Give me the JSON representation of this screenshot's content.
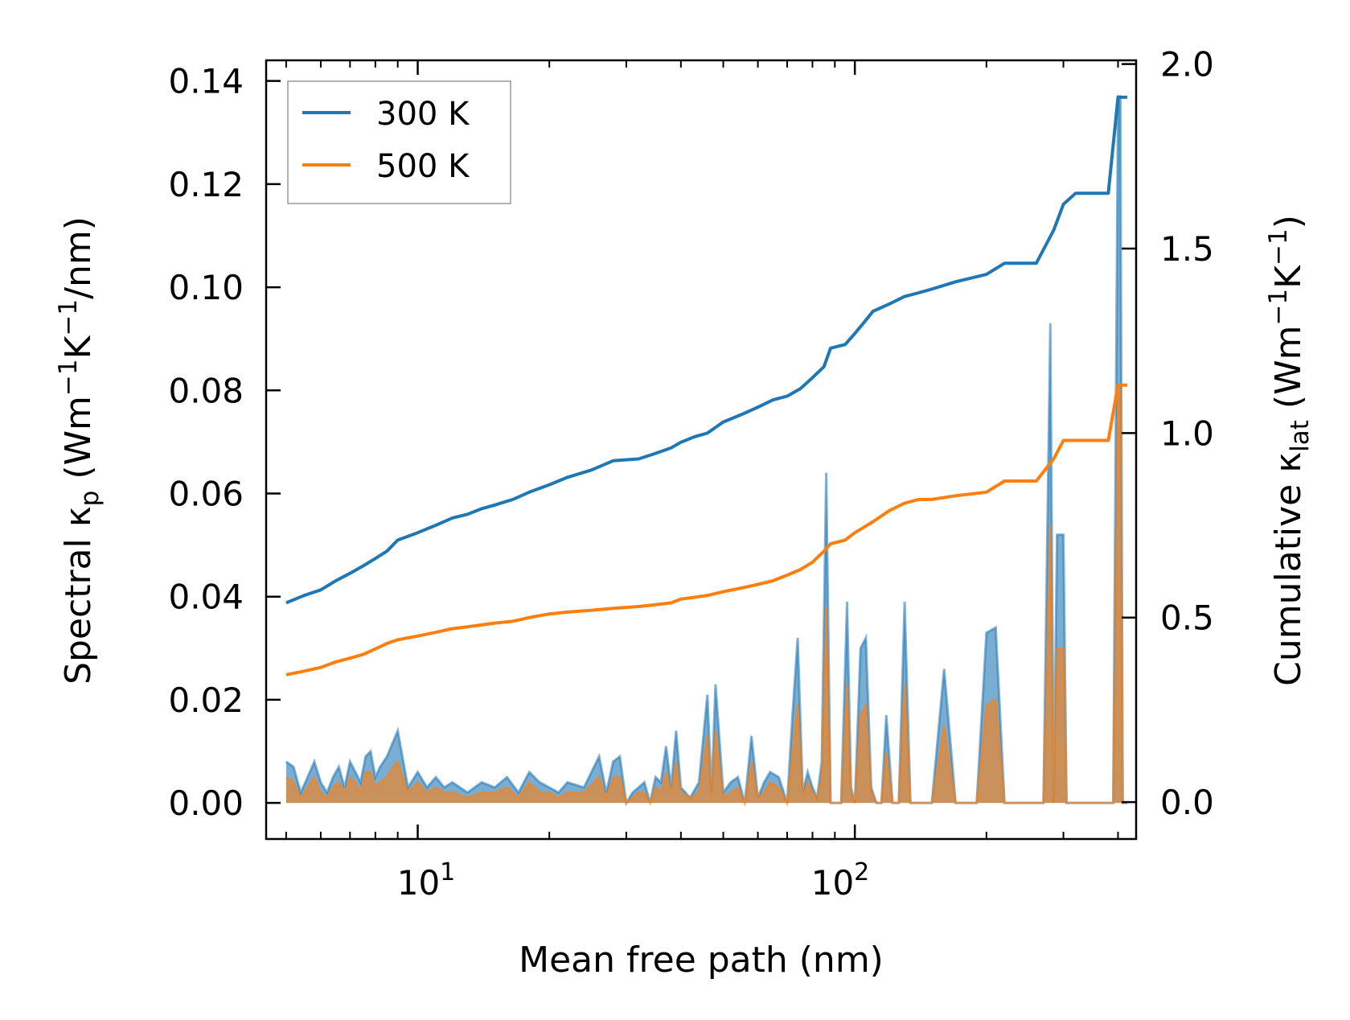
{
  "colors": {
    "series_300": "#1f77b4",
    "series_500": "#ff7f0e",
    "axis": "#000000",
    "background": "#ffffff"
  },
  "chart_data": {
    "type": "line",
    "xscale": "log",
    "xlim": [
      4.5,
      440
    ],
    "xticks_major": [
      10,
      100
    ],
    "xtick_labels": [
      {
        "value": 10,
        "base": "10",
        "exp": "1"
      },
      {
        "value": 100,
        "base": "10",
        "exp": "2"
      }
    ],
    "xlabel": "Mean free path (nm)",
    "left_axis": {
      "label_prefix": "Spectral κ",
      "label_sub": "p",
      "label_parts": [
        " (Wm",
        "−1",
        "K",
        "−1",
        "/nm)"
      ],
      "ylim": [
        -0.007,
        0.144
      ],
      "ticks": [
        0.0,
        0.02,
        0.04,
        0.06,
        0.08,
        0.1,
        0.12,
        0.14
      ],
      "tick_labels": [
        "0.00",
        "0.02",
        "0.04",
        "0.06",
        "0.08",
        "0.10",
        "0.12",
        "0.14"
      ]
    },
    "right_axis": {
      "label_prefix": "Cumulative κ",
      "label_sub": "lat",
      "label_parts": [
        " (Wm",
        "−1",
        "K",
        "−1",
        ")"
      ],
      "ylim": [
        -0.1,
        2.01
      ],
      "ticks": [
        0.0,
        0.5,
        1.0,
        1.5,
        2.0
      ],
      "tick_labels": [
        "0.0",
        "0.5",
        "1.0",
        "1.5",
        "2.0"
      ]
    },
    "legend": {
      "position": "top-left",
      "entries": [
        "300 K",
        "500 K"
      ]
    },
    "series": [
      {
        "name": "300 K",
        "kind": "cumulative",
        "axis": "right",
        "x": [
          5.0,
          5.5,
          6.0,
          6.5,
          7.0,
          7.5,
          8.0,
          8.5,
          9.0,
          10.0,
          11.0,
          12.0,
          13.0,
          14.0,
          15.0,
          16.5,
          18.0,
          20.0,
          22.0,
          25.0,
          28.0,
          32.0,
          35.0,
          38.0,
          40.0,
          43.0,
          46.0,
          50.0,
          55.0,
          60.0,
          65.0,
          70.0,
          75.0,
          80.0,
          85.0,
          88.0,
          95.0,
          100.0,
          105.0,
          110.0,
          120.0,
          130.0,
          140.0,
          150.0,
          170.0,
          200.0,
          220.0,
          240.0,
          260.0,
          285.0,
          300.0,
          320.0,
          350.0,
          380.0,
          400.0,
          420.0
        ],
        "values": [
          0.54,
          0.56,
          0.575,
          0.6,
          0.62,
          0.64,
          0.66,
          0.68,
          0.71,
          0.73,
          0.75,
          0.77,
          0.78,
          0.795,
          0.805,
          0.82,
          0.84,
          0.86,
          0.88,
          0.9,
          0.925,
          0.93,
          0.945,
          0.96,
          0.975,
          0.99,
          1.0,
          1.03,
          1.05,
          1.07,
          1.09,
          1.1,
          1.12,
          1.15,
          1.18,
          1.23,
          1.24,
          1.27,
          1.3,
          1.33,
          1.35,
          1.37,
          1.38,
          1.39,
          1.41,
          1.43,
          1.46,
          1.46,
          1.46,
          1.55,
          1.62,
          1.65,
          1.65,
          1.65,
          1.91,
          1.91
        ]
      },
      {
        "name": "500 K",
        "kind": "cumulative",
        "axis": "right",
        "x": [
          5.0,
          5.5,
          6.0,
          6.5,
          7.0,
          7.5,
          8.0,
          8.5,
          9.0,
          10.0,
          11.0,
          12.0,
          13.0,
          14.0,
          15.0,
          16.5,
          18.0,
          20.0,
          22.0,
          25.0,
          28.0,
          32.0,
          35.0,
          38.0,
          40.0,
          43.0,
          46.0,
          50.0,
          55.0,
          60.0,
          65.0,
          70.0,
          75.0,
          80.0,
          85.0,
          88.0,
          95.0,
          100.0,
          105.0,
          110.0,
          120.0,
          130.0,
          140.0,
          150.0,
          170.0,
          200.0,
          220.0,
          240.0,
          260.0,
          285.0,
          300.0,
          320.0,
          350.0,
          380.0,
          400.0,
          420.0
        ],
        "values": [
          0.345,
          0.355,
          0.365,
          0.38,
          0.39,
          0.4,
          0.415,
          0.43,
          0.44,
          0.45,
          0.46,
          0.47,
          0.475,
          0.48,
          0.485,
          0.49,
          0.5,
          0.51,
          0.515,
          0.52,
          0.525,
          0.53,
          0.535,
          0.54,
          0.55,
          0.555,
          0.56,
          0.57,
          0.58,
          0.59,
          0.6,
          0.615,
          0.63,
          0.65,
          0.68,
          0.7,
          0.71,
          0.73,
          0.745,
          0.76,
          0.79,
          0.81,
          0.82,
          0.82,
          0.83,
          0.84,
          0.87,
          0.87,
          0.87,
          0.93,
          0.98,
          0.98,
          0.98,
          0.98,
          1.13,
          1.13
        ]
      },
      {
        "name": "300 K",
        "kind": "spectral",
        "axis": "left",
        "x": [
          5.0,
          5.2,
          5.4,
          5.6,
          5.8,
          6.0,
          6.2,
          6.4,
          6.6,
          6.8,
          7.0,
          7.2,
          7.4,
          7.6,
          7.8,
          8.0,
          8.2,
          8.5,
          8.8,
          9.0,
          9.5,
          10.0,
          10.5,
          11.0,
          11.5,
          12.0,
          13.0,
          14.0,
          15.0,
          16.0,
          17.0,
          18.0,
          19.0,
          20.0,
          21.0,
          22.0,
          24.0,
          26.0,
          27.0,
          28.0,
          29.0,
          30.0,
          31.0,
          32.0,
          33.0,
          34.0,
          35.0,
          36.0,
          37.0,
          38.0,
          39.0,
          40.0,
          42.0,
          44.0,
          46.0,
          47.0,
          48.0,
          50.0,
          52.0,
          54.0,
          56.0,
          58.0,
          60.0,
          62.0,
          64.0,
          67.0,
          70.0,
          72.0,
          74.0,
          76.0,
          78.0,
          80.0,
          82.0,
          84.0,
          86.0,
          88.0,
          90.0,
          93.0,
          96.0,
          98.0,
          100.0,
          103.0,
          106.0,
          109.0,
          112.0,
          115.0,
          118.0,
          122.0,
          126.0,
          130.0,
          134.0,
          138.0,
          142.0,
          146.0,
          150.0,
          160.0,
          170.0,
          175.0,
          180.0,
          190.0,
          200.0,
          210.0,
          220.0,
          230.0,
          240.0,
          250.0,
          270.0,
          280.0,
          285.0,
          290.0,
          300.0,
          305.0,
          310.0,
          315.0,
          320.0,
          330.0,
          350.0,
          370.0,
          380.0,
          390.0,
          400.0,
          405.0,
          410.0,
          420.0
        ],
        "values": [
          0.008,
          0.007,
          0.002,
          0.005,
          0.008,
          0.004,
          0.002,
          0.005,
          0.007,
          0.003,
          0.008,
          0.006,
          0.004,
          0.009,
          0.01,
          0.005,
          0.007,
          0.009,
          0.012,
          0.014,
          0.003,
          0.006,
          0.003,
          0.005,
          0.003,
          0.004,
          0.002,
          0.004,
          0.003,
          0.005,
          0.002,
          0.006,
          0.004,
          0.003,
          0.002,
          0.004,
          0.003,
          0.009,
          0.002,
          0.008,
          0.009,
          0.0,
          0.002,
          0.003,
          0.004,
          0.0,
          0.005,
          0.004,
          0.011,
          0.003,
          0.014,
          0.003,
          0.001,
          0.004,
          0.021,
          0.002,
          0.023,
          0.002,
          0.004,
          0.005,
          0.0,
          0.013,
          0.001,
          0.004,
          0.006,
          0.005,
          0.0,
          0.017,
          0.032,
          0.002,
          0.006,
          0.003,
          0.001,
          0.008,
          0.064,
          0.0,
          0.0,
          0.0,
          0.039,
          0.003,
          0.0,
          0.03,
          0.032,
          0.003,
          0.0,
          0.0,
          0.017,
          0.0,
          0.0,
          0.039,
          0.0,
          0.0,
          0.0,
          0.0,
          0.0,
          0.026,
          0.0,
          0.0,
          0.0,
          0.0,
          0.033,
          0.034,
          0.0,
          0.0,
          0.0,
          0.0,
          0.0,
          0.093,
          0.0,
          0.052,
          0.052,
          0.0,
          0.0,
          0.0,
          0.0,
          0.0,
          0.0,
          0.0,
          0.0,
          0.0,
          0.137,
          0.137,
          0.0,
          0.0
        ]
      },
      {
        "name": "500 K",
        "kind": "spectral",
        "axis": "left",
        "x": [
          5.0,
          5.2,
          5.4,
          5.6,
          5.8,
          6.0,
          6.2,
          6.4,
          6.6,
          6.8,
          7.0,
          7.2,
          7.4,
          7.6,
          7.8,
          8.0,
          8.2,
          8.5,
          8.8,
          9.0,
          9.5,
          10.0,
          10.5,
          11.0,
          11.5,
          12.0,
          13.0,
          14.0,
          15.0,
          16.0,
          17.0,
          18.0,
          19.0,
          20.0,
          21.0,
          22.0,
          24.0,
          26.0,
          27.0,
          28.0,
          29.0,
          30.0,
          31.0,
          32.0,
          33.0,
          34.0,
          35.0,
          36.0,
          37.0,
          38.0,
          39.0,
          40.0,
          42.0,
          44.0,
          46.0,
          47.0,
          48.0,
          50.0,
          52.0,
          54.0,
          56.0,
          58.0,
          60.0,
          62.0,
          64.0,
          67.0,
          70.0,
          72.0,
          74.0,
          76.0,
          78.0,
          80.0,
          82.0,
          84.0,
          86.0,
          88.0,
          90.0,
          93.0,
          96.0,
          98.0,
          100.0,
          103.0,
          106.0,
          109.0,
          112.0,
          115.0,
          118.0,
          122.0,
          126.0,
          130.0,
          134.0,
          138.0,
          142.0,
          146.0,
          150.0,
          160.0,
          170.0,
          175.0,
          180.0,
          190.0,
          200.0,
          210.0,
          220.0,
          230.0,
          240.0,
          250.0,
          270.0,
          280.0,
          285.0,
          290.0,
          300.0,
          305.0,
          310.0,
          315.0,
          320.0,
          330.0,
          350.0,
          370.0,
          380.0,
          390.0,
          400.0,
          405.0,
          410.0,
          420.0
        ],
        "values": [
          0.005,
          0.004,
          0.001,
          0.003,
          0.005,
          0.002,
          0.001,
          0.003,
          0.004,
          0.002,
          0.005,
          0.004,
          0.002,
          0.006,
          0.006,
          0.003,
          0.004,
          0.005,
          0.007,
          0.008,
          0.002,
          0.004,
          0.002,
          0.003,
          0.002,
          0.002,
          0.001,
          0.002,
          0.002,
          0.003,
          0.001,
          0.004,
          0.002,
          0.002,
          0.001,
          0.002,
          0.002,
          0.005,
          0.001,
          0.005,
          0.005,
          0.0,
          0.001,
          0.002,
          0.002,
          0.0,
          0.003,
          0.002,
          0.006,
          0.002,
          0.008,
          0.002,
          0.001,
          0.002,
          0.013,
          0.001,
          0.014,
          0.001,
          0.002,
          0.003,
          0.0,
          0.008,
          0.001,
          0.002,
          0.004,
          0.003,
          0.0,
          0.01,
          0.019,
          0.001,
          0.004,
          0.002,
          0.001,
          0.005,
          0.038,
          0.0,
          0.0,
          0.0,
          0.023,
          0.002,
          0.0,
          0.017,
          0.019,
          0.002,
          0.0,
          0.0,
          0.01,
          0.0,
          0.0,
          0.023,
          0.0,
          0.0,
          0.0,
          0.0,
          0.0,
          0.015,
          0.0,
          0.0,
          0.0,
          0.0,
          0.019,
          0.02,
          0.0,
          0.0,
          0.0,
          0.0,
          0.0,
          0.054,
          0.0,
          0.03,
          0.03,
          0.0,
          0.0,
          0.0,
          0.0,
          0.0,
          0.0,
          0.0,
          0.0,
          0.0,
          0.08,
          0.08,
          0.0,
          0.0
        ]
      }
    ]
  }
}
